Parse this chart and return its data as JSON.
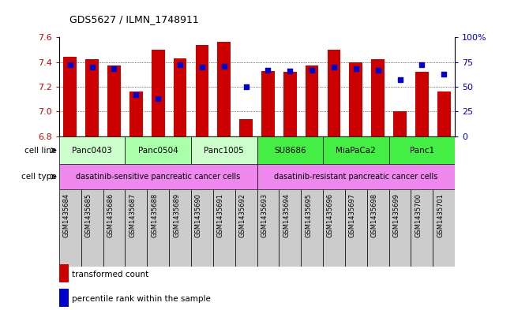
{
  "title": "GDS5627 / ILMN_1748911",
  "samples": [
    "GSM1435684",
    "GSM1435685",
    "GSM1435686",
    "GSM1435687",
    "GSM1435688",
    "GSM1435689",
    "GSM1435690",
    "GSM1435691",
    "GSM1435692",
    "GSM1435693",
    "GSM1435694",
    "GSM1435695",
    "GSM1435696",
    "GSM1435697",
    "GSM1435698",
    "GSM1435699",
    "GSM1435700",
    "GSM1435701"
  ],
  "bar_values": [
    7.44,
    7.42,
    7.37,
    7.16,
    7.5,
    7.43,
    7.54,
    7.56,
    6.94,
    7.33,
    7.32,
    7.37,
    7.5,
    7.4,
    7.42,
    7.0,
    7.32,
    7.16
  ],
  "dot_values": [
    72,
    70,
    68,
    42,
    38,
    72,
    70,
    71,
    50,
    67,
    66,
    67,
    70,
    68,
    67,
    57,
    72,
    63
  ],
  "ylim_left": [
    6.8,
    7.6
  ],
  "ylim_right": [
    0,
    100
  ],
  "yticks_left": [
    6.8,
    7.0,
    7.2,
    7.4,
    7.6
  ],
  "yticks_right": [
    0,
    25,
    50,
    75,
    100
  ],
  "bar_color": "#cc0000",
  "dot_color": "#0000cc",
  "cell_lines": [
    {
      "name": "Panc0403",
      "start": 0,
      "end": 3,
      "color": "#ccffcc"
    },
    {
      "name": "Panc0504",
      "start": 3,
      "end": 6,
      "color": "#aaffaa"
    },
    {
      "name": "Panc1005",
      "start": 6,
      "end": 9,
      "color": "#ccffcc"
    },
    {
      "name": "SU8686",
      "start": 9,
      "end": 12,
      "color": "#44ee44"
    },
    {
      "name": "MiaPaCa2",
      "start": 12,
      "end": 15,
      "color": "#44ee44"
    },
    {
      "name": "Panc1",
      "start": 15,
      "end": 18,
      "color": "#44ee44"
    }
  ],
  "cell_types": [
    {
      "name": "dasatinib-sensitive pancreatic cancer cells",
      "start": 0,
      "end": 9,
      "color": "#ee88ee"
    },
    {
      "name": "dasatinib-resistant pancreatic cancer cells",
      "start": 9,
      "end": 18,
      "color": "#ee88ee"
    }
  ],
  "legend_items": [
    {
      "label": "transformed count",
      "color": "#cc0000"
    },
    {
      "label": "percentile rank within the sample",
      "color": "#0000cc"
    }
  ],
  "sample_box_color": "#cccccc",
  "bg_color": "#ffffff",
  "tick_color_left": "#cc0000",
  "tick_color_right": "#0000cc"
}
